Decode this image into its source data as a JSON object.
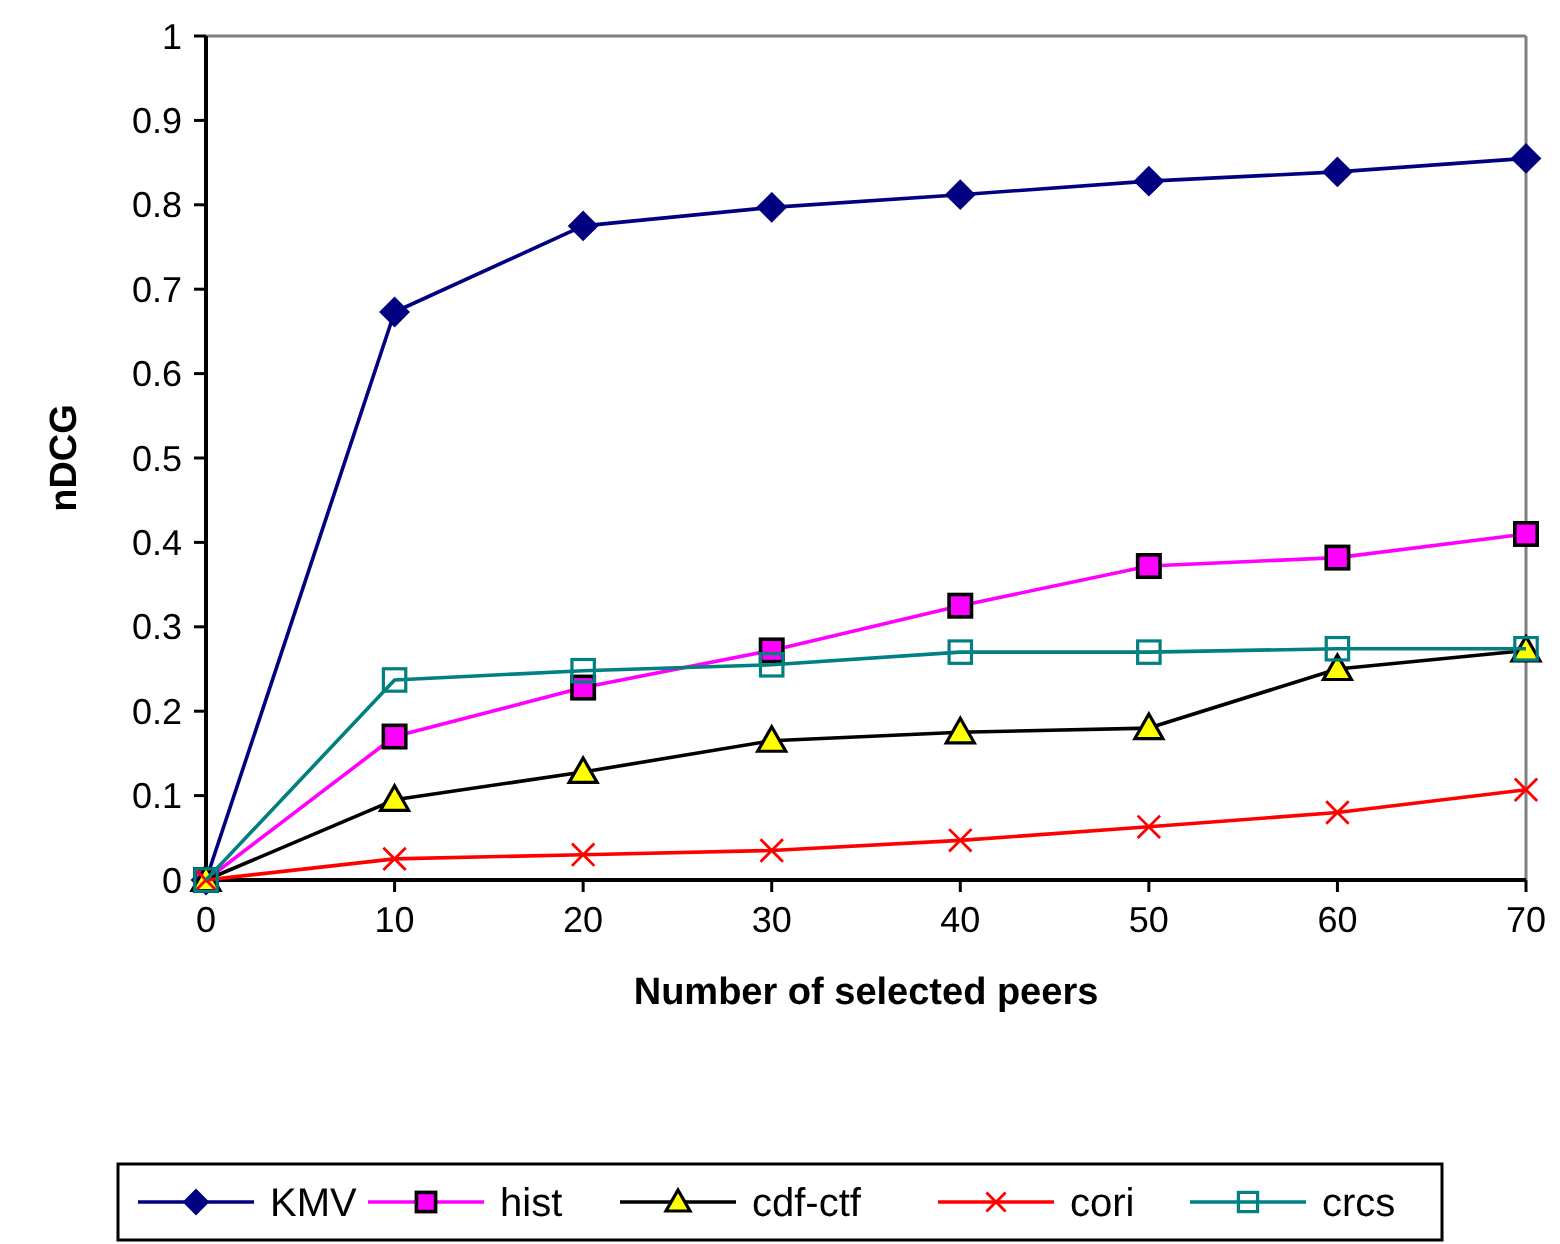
{
  "chart_data": {
    "type": "line",
    "xlabel": "Number of selected peers",
    "ylabel": "nDCG",
    "x": [
      0,
      10,
      20,
      30,
      40,
      50,
      60,
      70
    ],
    "xlim": [
      0,
      70
    ],
    "xticks": [
      0,
      10,
      20,
      30,
      40,
      50,
      60,
      70
    ],
    "ylim": [
      0,
      1
    ],
    "yticks": [
      0,
      0.1,
      0.2,
      0.3,
      0.4,
      0.5,
      0.6,
      0.7,
      0.8,
      0.9,
      1
    ],
    "grid": false,
    "legend": "bottom",
    "line_style": "solid",
    "series": [
      {
        "name": "KMV",
        "color": "#000080",
        "marker": "diamond",
        "values": [
          0,
          0.673,
          0.775,
          0.797,
          0.812,
          0.828,
          0.839,
          0.855
        ]
      },
      {
        "name": "hist",
        "color": "#ff00ff",
        "marker": "square",
        "values": [
          0,
          0.17,
          0.228,
          0.272,
          0.325,
          0.372,
          0.382,
          0.41
        ]
      },
      {
        "name": "cdf-ctf",
        "color": "#000000",
        "marker": "triangle",
        "values": [
          0,
          0.095,
          0.128,
          0.165,
          0.175,
          0.18,
          0.25,
          0.272
        ]
      },
      {
        "name": "cori",
        "color": "#ff0000",
        "marker": "cross",
        "values": [
          0,
          0.025,
          0.03,
          0.035,
          0.047,
          0.063,
          0.08,
          0.107
        ]
      },
      {
        "name": "crcs",
        "color": "#008080",
        "marker": "square",
        "values": [
          0,
          0.237,
          0.248,
          0.255,
          0.27,
          0.27,
          0.274,
          0.274
        ]
      }
    ]
  }
}
